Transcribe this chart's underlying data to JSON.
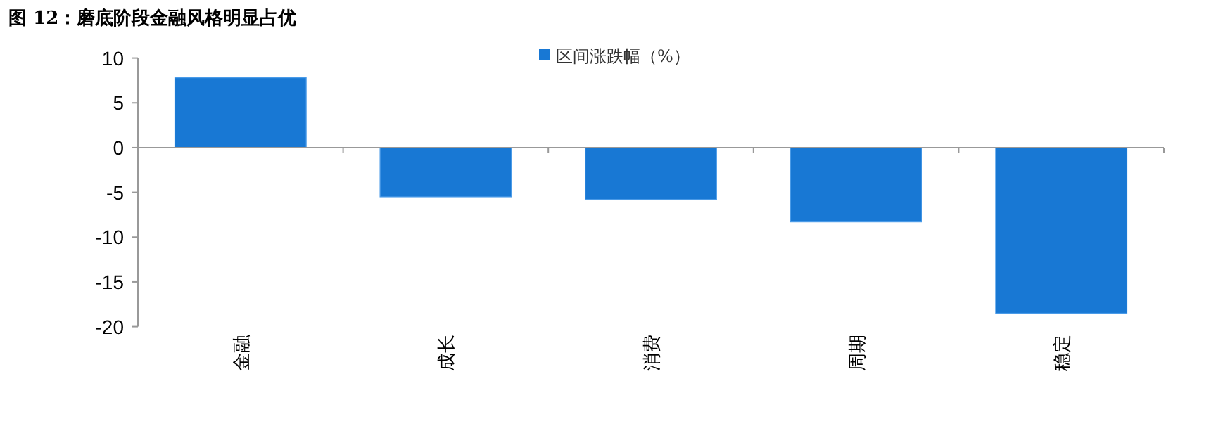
{
  "chart_data": {
    "type": "bar",
    "title": "图 12：磨底阶段金融风格明显占优",
    "categories": [
      "金融",
      "成长",
      "消费",
      "周期",
      "稳定"
    ],
    "series": [
      {
        "name": "区间涨跌幅（%）",
        "color": "#1878d4",
        "values": [
          7.8,
          -5.5,
          -5.8,
          -8.3,
          -18.5
        ]
      }
    ],
    "ylim": [
      -20,
      10
    ],
    "yticks": [
      -20,
      -15,
      -10,
      -5,
      0,
      5,
      10
    ],
    "legend": "top"
  }
}
